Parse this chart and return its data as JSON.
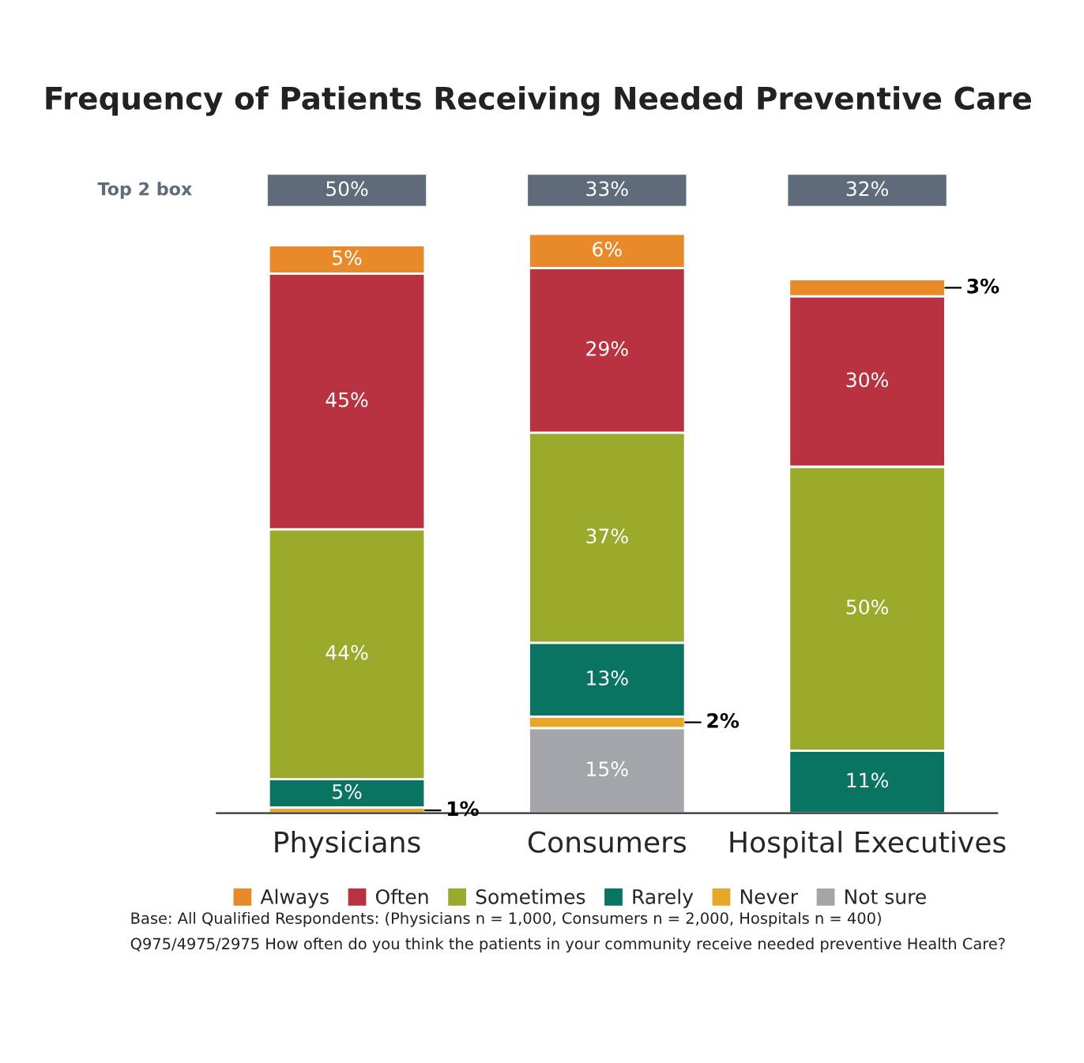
{
  "chart_data": {
    "type": "bar",
    "stacked": true,
    "title": "Frequency of Patients Receiving Needed Preventive Care",
    "categories": [
      "Physicians",
      "Consumers",
      "Hospital Executives"
    ],
    "series": [
      {
        "name": "Not sure",
        "color": "#a3a5a8",
        "values": [
          null,
          15,
          null
        ],
        "value_labels": [
          null,
          "15%",
          null
        ]
      },
      {
        "name": "Never",
        "color": "#e8a62a",
        "values": [
          1,
          2,
          null
        ],
        "value_labels": [
          "1%",
          "2%",
          null
        ]
      },
      {
        "name": "Rarely",
        "color": "#0a7463",
        "values": [
          5,
          13,
          11
        ],
        "value_labels": [
          "5%",
          "13%",
          "11%"
        ]
      },
      {
        "name": "Sometimes",
        "color": "#9aab2c",
        "values": [
          44,
          37,
          50
        ],
        "value_labels": [
          "44%",
          "37%",
          "50%"
        ]
      },
      {
        "name": "Often",
        "color": "#b83241",
        "values": [
          45,
          29,
          30
        ],
        "value_labels": [
          "45%",
          "29%",
          "30%"
        ]
      },
      {
        "name": "Always",
        "color": "#e8892a",
        "values": [
          5,
          6,
          3
        ],
        "value_labels": [
          "5%",
          "6%",
          "3%"
        ]
      }
    ],
    "annotations": [
      "Top 2 box",
      "50%",
      "33%",
      "32%",
      "Base: All Qualified Respondents: (Physicians n = 1,000, Consumers n = 2,000, Hospitals n = 400)",
      "Q975/4975/2975 How often do you think the patients in your community receive needed preventive Health Care?"
    ],
    "legend": "bottom",
    "grid": false
  }
}
